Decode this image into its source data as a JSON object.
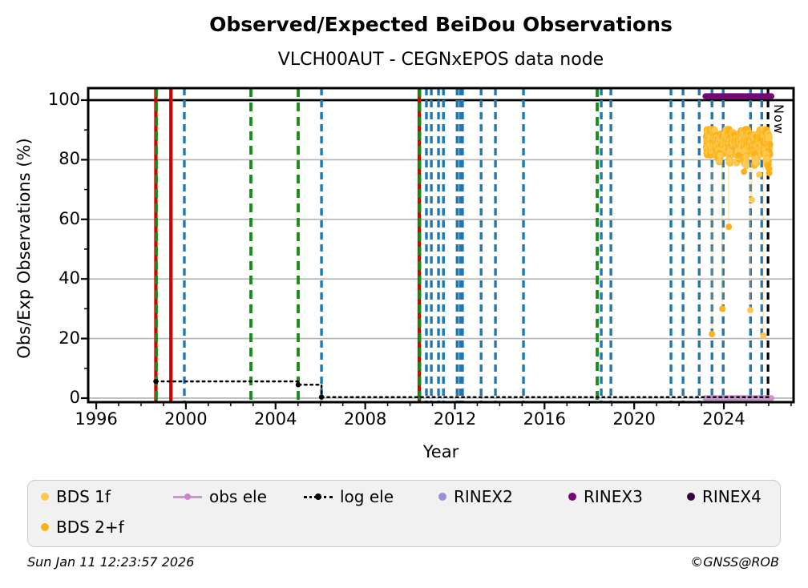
{
  "header": {
    "title": "Observed/Expected BeiDou Observations",
    "subtitle": "VLCH00AUT - CEGNxEPOS data node"
  },
  "footer": {
    "timestamp": "Sun Jan 11 12:23:57 2026",
    "copyright": "©GNSS@ROB"
  },
  "legend": {
    "items": [
      {
        "label": "BDS 1f",
        "type": "dot",
        "color": "#FCC84E"
      },
      {
        "label": "obs ele",
        "type": "line-dot",
        "color": "#CE93CE"
      },
      {
        "label": "log ele",
        "type": "dotted-dot",
        "color": "#000000"
      },
      {
        "label": "RINEX2",
        "type": "dot",
        "color": "#9A8FD2"
      },
      {
        "label": "RINEX3",
        "type": "dot",
        "color": "#750875"
      },
      {
        "label": "RINEX4",
        "type": "dot",
        "color": "#360840"
      },
      {
        "label": "BDS 2+f",
        "type": "dot",
        "color": "#FBB117"
      }
    ]
  },
  "colors": {
    "blue_event": "#1f77b4",
    "green_event": "#1a8a1a",
    "red_event": "#d40000",
    "now_line": "#000000",
    "rinex3_bar": "#750875",
    "obs_ele": "#CE93CE",
    "log_ele": "#000000",
    "bds1f": "#FCC84E",
    "bds2f": "#FBB117",
    "grid": "#b3b3b3",
    "frame": "#000000",
    "dropline": "rgba(252,190,44,0.28)"
  },
  "chart_data": {
    "type": "scatter",
    "title": "Observed/Expected BeiDou Observations",
    "subtitle": "VLCH00AUT - CEGNxEPOS data node",
    "xlabel": "Year",
    "ylabel": "Obs/Exp Observations (%)",
    "xlim": [
      1995.64,
      2027.11
    ],
    "ylim": [
      -1.35,
      104.03
    ],
    "x_major_ticks": [
      1996,
      2000,
      2004,
      2008,
      2012,
      2016,
      2020,
      2024
    ],
    "x_minor_tick_years": {
      "start": 1996,
      "end": 2027,
      "step": 1
    },
    "y_major_ticks": [
      0,
      20,
      40,
      60,
      80,
      100
    ],
    "y_minor_ticks": [
      10,
      30,
      50,
      70,
      90
    ],
    "grid_y_values": [
      0,
      20,
      40,
      60,
      80
    ],
    "hline_black_at": 100,
    "now": {
      "year": 2025.97,
      "label": "Now"
    },
    "event_lines": {
      "red_solid": [
        1998.66,
        1999.33,
        2010.41
      ],
      "green_dashed": [
        1998.68,
        2002.9,
        2005.01,
        2010.43,
        2018.35
      ],
      "blue_dashed": [
        1999.93,
        2006.05,
        2010.73,
        2010.95,
        2011.27,
        2011.49,
        2012.1,
        2012.24,
        2012.34,
        2013.17,
        2013.81,
        2015.06,
        2018.53,
        2018.96,
        2021.64,
        2022.18,
        2022.9,
        2023.47,
        2023.97,
        2025.19,
        2025.69
      ]
    },
    "rinex3_bar": {
      "start": 2023.18,
      "end": 2026.12,
      "pct": 101.3
    },
    "obs_ele_bar": {
      "start": 2023.18,
      "end": 2026.12,
      "pct": 0
    },
    "log_ele_path": [
      [
        1998.66,
        5.6
      ],
      [
        2005.01,
        5.6
      ],
      [
        2005.01,
        4.5
      ],
      [
        2006.05,
        4.5
      ],
      [
        2006.05,
        0.35
      ],
      [
        2026.12,
        0.35
      ]
    ],
    "log_ele_marker_points": [
      [
        1998.66,
        5.6
      ],
      [
        2005.01,
        4.5
      ],
      [
        2006.05,
        0.35
      ]
    ],
    "bds_cloud": {
      "start": 2023.21,
      "end": 2026.06,
      "pct_main_min": 82.0,
      "pct_main_max": 90.2,
      "lumps": [
        {
          "year": 2023.78,
          "halfwidth": 0.05,
          "pct_low": 79.0
        },
        {
          "year": 2024.27,
          "halfwidth": 0.04,
          "pct_low": 78.5
        },
        {
          "year": 2024.62,
          "halfwidth": 0.05,
          "pct_low": 78.0
        },
        {
          "year": 2024.95,
          "halfwidth": 0.06,
          "pct_low": 77.5
        },
        {
          "year": 2025.42,
          "halfwidth": 0.07,
          "pct_low": 78.0
        },
        {
          "year": 2025.95,
          "halfwidth": 0.09,
          "pct_low": 76.5
        }
      ]
    },
    "outliers": [
      {
        "year": 2024.22,
        "pct": 79.0
      },
      {
        "year": 2024.9,
        "pct": 76.0
      },
      {
        "year": 2025.58,
        "pct": 75.0
      },
      {
        "year": 2026.02,
        "pct": 75.5
      },
      {
        "year": 2025.25,
        "pct": 66.5
      },
      {
        "year": 2024.22,
        "pct": 57.5
      },
      {
        "year": 2023.93,
        "pct": 30.0
      },
      {
        "year": 2025.18,
        "pct": 29.5
      },
      {
        "year": 2023.47,
        "pct": 21.5
      },
      {
        "year": 2025.76,
        "pct": 21.0
      }
    ],
    "droplines": [
      {
        "year": 2023.47,
        "pct": 21.5
      },
      {
        "year": 2023.93,
        "pct": 30.0
      },
      {
        "year": 2024.22,
        "pct": 57.5
      },
      {
        "year": 2025.18,
        "pct": 29.5
      },
      {
        "year": 2025.25,
        "pct": 66.5
      },
      {
        "year": 2025.76,
        "pct": 21.0
      }
    ]
  }
}
